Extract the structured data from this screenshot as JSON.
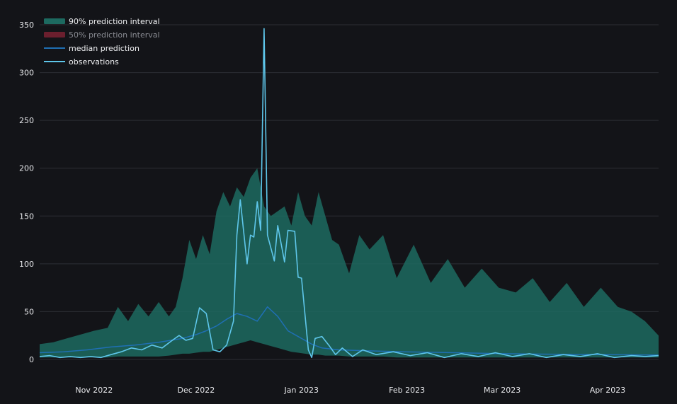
{
  "chart_data": {
    "type": "area",
    "title": "",
    "xlabel": "",
    "ylabel": "",
    "ylim": [
      0,
      350
    ],
    "xlim": [
      "2022-10-16",
      "2023-04-16"
    ],
    "y_ticks": [
      0,
      50,
      100,
      150,
      200,
      250,
      300,
      350
    ],
    "x_ticks": [
      {
        "date": "2022-11-01",
        "label": "Nov 2022"
      },
      {
        "date": "2022-12-01",
        "label": "Dec 2022"
      },
      {
        "date": "2023-01-01",
        "label": "Jan 2023"
      },
      {
        "date": "2023-02-01",
        "label": "Feb 2023"
      },
      {
        "date": "2023-03-01",
        "label": "Mar 2023"
      },
      {
        "date": "2023-04-01",
        "label": "Apr 2023"
      }
    ],
    "grid": true,
    "legend_position": "top-left",
    "colors": {
      "interval90": "#1d6a60",
      "interval50": "#6b1f2e",
      "median": "#1f6fb4",
      "observations": "#5ec6ea",
      "background": "#131418",
      "grid": "#2c2e34"
    },
    "legend": [
      {
        "key": "interval90",
        "label": "90% prediction interval",
        "dimmed": false
      },
      {
        "key": "interval50",
        "label": "50% prediction interval",
        "dimmed": true
      },
      {
        "key": "median",
        "label": "median prediction",
        "dimmed": false
      },
      {
        "key": "observations",
        "label": "observations",
        "dimmed": false
      }
    ],
    "series": [
      {
        "name": "90% prediction interval",
        "kind": "band",
        "points": [
          [
            "2022-10-16",
            2,
            16
          ],
          [
            "2022-10-20",
            2,
            18
          ],
          [
            "2022-10-24",
            2,
            22
          ],
          [
            "2022-10-28",
            2,
            26
          ],
          [
            "2022-11-01",
            2,
            30
          ],
          [
            "2022-11-05",
            2,
            33
          ],
          [
            "2022-11-08",
            3,
            55
          ],
          [
            "2022-11-11",
            3,
            40
          ],
          [
            "2022-11-14",
            3,
            58
          ],
          [
            "2022-11-17",
            3,
            45
          ],
          [
            "2022-11-20",
            3,
            60
          ],
          [
            "2022-11-23",
            4,
            45
          ],
          [
            "2022-11-25",
            5,
            55
          ],
          [
            "2022-11-27",
            6,
            85
          ],
          [
            "2022-11-29",
            6,
            125
          ],
          [
            "2022-12-01",
            7,
            105
          ],
          [
            "2022-12-03",
            8,
            130
          ],
          [
            "2022-12-05",
            8,
            110
          ],
          [
            "2022-12-07",
            10,
            155
          ],
          [
            "2022-12-09",
            12,
            175
          ],
          [
            "2022-12-11",
            14,
            160
          ],
          [
            "2022-12-13",
            16,
            180
          ],
          [
            "2022-12-15",
            18,
            170
          ],
          [
            "2022-12-17",
            20,
            190
          ],
          [
            "2022-12-19",
            18,
            200
          ],
          [
            "2022-12-21",
            16,
            160
          ],
          [
            "2022-12-23",
            14,
            150
          ],
          [
            "2022-12-25",
            12,
            155
          ],
          [
            "2022-12-27",
            10,
            160
          ],
          [
            "2022-12-29",
            8,
            140
          ],
          [
            "2022-12-31",
            7,
            175
          ],
          [
            "2023-01-02",
            6,
            150
          ],
          [
            "2023-01-04",
            5,
            140
          ],
          [
            "2023-01-06",
            5,
            175
          ],
          [
            "2023-01-08",
            4,
            150
          ],
          [
            "2023-01-10",
            4,
            125
          ],
          [
            "2023-01-12",
            4,
            120
          ],
          [
            "2023-01-15",
            3,
            90
          ],
          [
            "2023-01-18",
            3,
            130
          ],
          [
            "2023-01-21",
            3,
            115
          ],
          [
            "2023-01-25",
            3,
            130
          ],
          [
            "2023-01-29",
            2,
            85
          ],
          [
            "2023-02-03",
            2,
            120
          ],
          [
            "2023-02-08",
            2,
            80
          ],
          [
            "2023-02-13",
            2,
            105
          ],
          [
            "2023-02-18",
            2,
            75
          ],
          [
            "2023-02-23",
            2,
            95
          ],
          [
            "2023-02-28",
            2,
            75
          ],
          [
            "2023-03-05",
            2,
            70
          ],
          [
            "2023-03-10",
            2,
            85
          ],
          [
            "2023-03-15",
            2,
            60
          ],
          [
            "2023-03-20",
            2,
            80
          ],
          [
            "2023-03-25",
            2,
            55
          ],
          [
            "2023-03-30",
            2,
            75
          ],
          [
            "2023-04-04",
            2,
            55
          ],
          [
            "2023-04-08",
            2,
            50
          ],
          [
            "2023-04-12",
            2,
            40
          ],
          [
            "2023-04-16",
            2,
            25
          ]
        ]
      },
      {
        "name": "median prediction",
        "kind": "line",
        "points": [
          [
            "2022-10-16",
            7
          ],
          [
            "2022-10-23",
            8
          ],
          [
            "2022-10-30",
            10
          ],
          [
            "2022-11-06",
            13
          ],
          [
            "2022-11-13",
            15
          ],
          [
            "2022-11-20",
            18
          ],
          [
            "2022-11-27",
            22
          ],
          [
            "2022-12-01",
            26
          ],
          [
            "2022-12-04",
            30
          ],
          [
            "2022-12-07",
            35
          ],
          [
            "2022-12-10",
            42
          ],
          [
            "2022-12-13",
            48
          ],
          [
            "2022-12-16",
            45
          ],
          [
            "2022-12-19",
            40
          ],
          [
            "2022-12-22",
            55
          ],
          [
            "2022-12-25",
            45
          ],
          [
            "2022-12-28",
            30
          ],
          [
            "2023-01-01",
            22
          ],
          [
            "2023-01-04",
            16
          ],
          [
            "2023-01-07",
            12
          ],
          [
            "2023-01-12",
            10
          ],
          [
            "2023-01-20",
            9
          ],
          [
            "2023-01-31",
            8
          ],
          [
            "2023-02-15",
            7
          ],
          [
            "2023-03-01",
            6
          ],
          [
            "2023-03-15",
            5.5
          ],
          [
            "2023-04-01",
            5
          ],
          [
            "2023-04-16",
            4.5
          ]
        ]
      },
      {
        "name": "observations",
        "kind": "line",
        "points": [
          [
            "2022-10-16",
            3
          ],
          [
            "2022-10-19",
            4
          ],
          [
            "2022-10-22",
            2
          ],
          [
            "2022-10-25",
            3
          ],
          [
            "2022-10-28",
            2
          ],
          [
            "2022-10-31",
            3
          ],
          [
            "2022-11-03",
            2
          ],
          [
            "2022-11-06",
            5
          ],
          [
            "2022-11-09",
            8
          ],
          [
            "2022-11-12",
            12
          ],
          [
            "2022-11-15",
            10
          ],
          [
            "2022-11-18",
            15
          ],
          [
            "2022-11-21",
            12
          ],
          [
            "2022-11-24",
            20
          ],
          [
            "2022-11-26",
            25
          ],
          [
            "2022-11-28",
            20
          ],
          [
            "2022-11-30",
            22
          ],
          [
            "2022-12-02",
            54
          ],
          [
            "2022-12-04",
            48
          ],
          [
            "2022-12-06",
            10
          ],
          [
            "2022-12-08",
            8
          ],
          [
            "2022-12-10",
            15
          ],
          [
            "2022-12-12",
            40
          ],
          [
            "2022-12-13",
            130
          ],
          [
            "2022-12-14",
            167
          ],
          [
            "2022-12-16",
            100
          ],
          [
            "2022-12-17",
            130
          ],
          [
            "2022-12-18",
            128
          ],
          [
            "2022-12-19",
            165
          ],
          [
            "2022-12-20",
            135
          ],
          [
            "2022-12-21",
            346
          ],
          [
            "2022-12-22",
            130
          ],
          [
            "2022-12-24",
            103
          ],
          [
            "2022-12-25",
            140
          ],
          [
            "2022-12-27",
            102
          ],
          [
            "2022-12-28",
            135
          ],
          [
            "2022-12-30",
            134
          ],
          [
            "2022-12-31",
            86
          ],
          [
            "2023-01-01",
            85
          ],
          [
            "2023-01-03",
            10
          ],
          [
            "2023-01-04",
            2
          ],
          [
            "2023-01-05",
            22
          ],
          [
            "2023-01-07",
            24
          ],
          [
            "2023-01-09",
            15
          ],
          [
            "2023-01-11",
            5
          ],
          [
            "2023-01-13",
            12
          ],
          [
            "2023-01-16",
            3
          ],
          [
            "2023-01-19",
            10
          ],
          [
            "2023-01-23",
            5
          ],
          [
            "2023-01-28",
            8
          ],
          [
            "2023-02-02",
            4
          ],
          [
            "2023-02-07",
            7
          ],
          [
            "2023-02-12",
            2
          ],
          [
            "2023-02-17",
            6
          ],
          [
            "2023-02-22",
            3
          ],
          [
            "2023-02-27",
            7
          ],
          [
            "2023-03-04",
            3
          ],
          [
            "2023-03-09",
            6
          ],
          [
            "2023-03-14",
            2
          ],
          [
            "2023-03-19",
            5
          ],
          [
            "2023-03-24",
            3
          ],
          [
            "2023-03-29",
            6
          ],
          [
            "2023-04-03",
            2
          ],
          [
            "2023-04-08",
            4
          ],
          [
            "2023-04-12",
            3
          ],
          [
            "2023-04-16",
            4
          ]
        ]
      }
    ]
  }
}
